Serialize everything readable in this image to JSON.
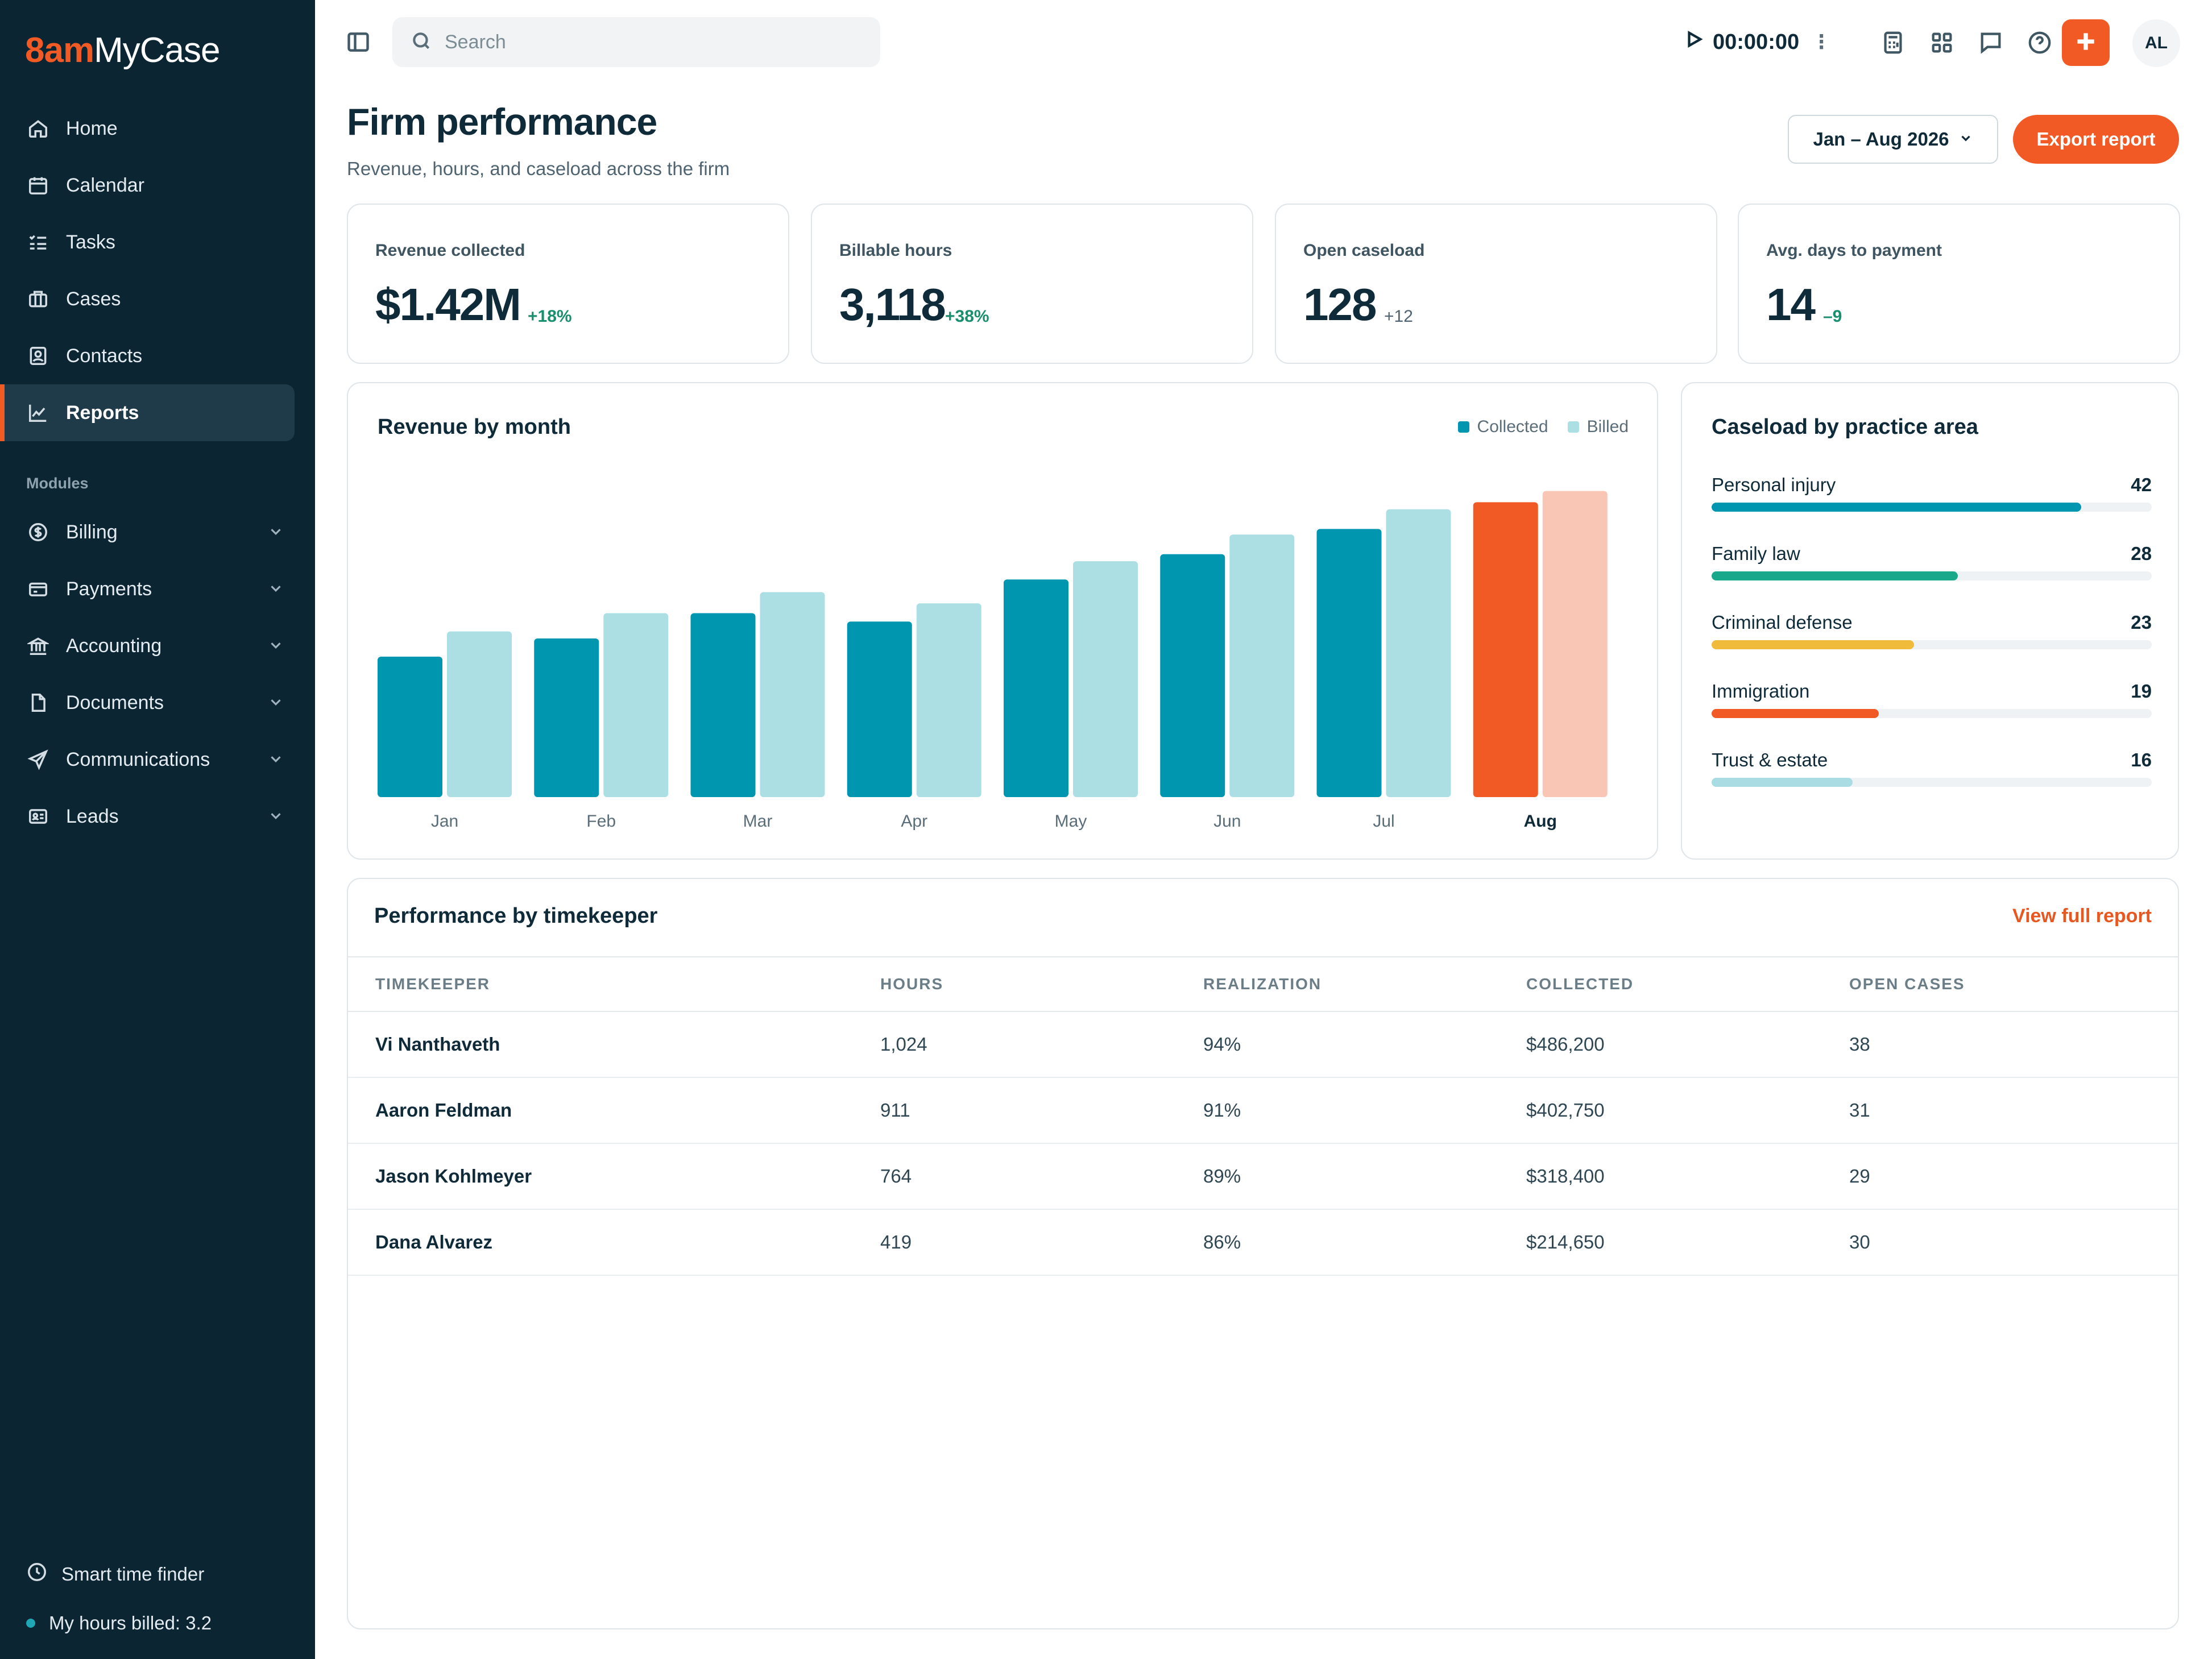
{
  "brand": {
    "logo_accent": "8am",
    "logo_rest": "MyCase",
    "accent_color": "#f15a24"
  },
  "sidebar": {
    "items": [
      {
        "label": "Home",
        "icon": "home-icon"
      },
      {
        "label": "Calendar",
        "icon": "calendar-icon"
      },
      {
        "label": "Tasks",
        "icon": "tasks-icon"
      },
      {
        "label": "Cases",
        "icon": "briefcase-icon"
      },
      {
        "label": "Contacts",
        "icon": "contact-icon"
      },
      {
        "label": "Reports",
        "icon": "chart-line-icon",
        "active": true
      }
    ],
    "modules_label": "Modules",
    "modules": [
      {
        "label": "Billing",
        "icon": "dollar-icon"
      },
      {
        "label": "Payments",
        "icon": "card-icon"
      },
      {
        "label": "Accounting",
        "icon": "bank-icon"
      },
      {
        "label": "Documents",
        "icon": "document-icon"
      },
      {
        "label": "Communications",
        "icon": "send-icon"
      },
      {
        "label": "Leads",
        "icon": "id-card-icon"
      }
    ],
    "footer": {
      "smart_time": "Smart time finder",
      "hours_billed": "My hours billed: 3.2"
    }
  },
  "topbar": {
    "search_placeholder": "Search",
    "timer": "00:00:00",
    "avatar_initials": "AL"
  },
  "header": {
    "title": "Firm performance",
    "subtitle": "Revenue, hours, and caseload across the firm",
    "date_range": "Jan – Aug 2026",
    "export_label": "Export report"
  },
  "kpis": [
    {
      "label": "Revenue collected",
      "value": "$1.42M",
      "delta": "+18%"
    },
    {
      "label": "Billable hours",
      "value": "3,118",
      "delta": "+38%"
    },
    {
      "label": "Open caseload",
      "value": "128",
      "delta": "+12"
    },
    {
      "label": "Avg. days to payment",
      "value": "14",
      "delta": "–9"
    }
  ],
  "revenue_card": {
    "title": "Revenue by month",
    "legend_collected": "Collected",
    "legend_billed": "Billed"
  },
  "chart_data": {
    "type": "bar",
    "categories": [
      "Jan",
      "Feb",
      "Mar",
      "Apr",
      "May",
      "Jun",
      "Jul",
      "Aug"
    ],
    "series": [
      {
        "name": "Collected",
        "values": [
          100,
          113,
          131,
          125,
          155,
          173,
          191,
          210
        ]
      },
      {
        "name": "Billed",
        "values": [
          118,
          131,
          146,
          138,
          168,
          187,
          205,
          218
        ]
      }
    ],
    "ylim": [
      0,
      230
    ],
    "highlight_category": "Aug",
    "colors": {
      "collected": "#0096b0",
      "billed": "#acdfe4",
      "highlight_collected": "#f15a24",
      "highlight_billed": "#f9c6b5"
    },
    "legend": "top-right",
    "grid": false
  },
  "caseload_card": {
    "title": "Caseload by practice area",
    "max": 50,
    "items": [
      {
        "label": "Personal injury",
        "count": 42,
        "color": "#0096b0"
      },
      {
        "label": "Family law",
        "count": 28,
        "color": "#1aa88a"
      },
      {
        "label": "Criminal defense",
        "count": 23,
        "color": "#f0bb3a"
      },
      {
        "label": "Immigration",
        "count": 19,
        "color": "#f15a24"
      },
      {
        "label": "Trust & estate",
        "count": 16,
        "color": "#a9dde3"
      }
    ]
  },
  "timekeepers": {
    "title": "Performance by timekeeper",
    "view_link": "View full report",
    "columns": [
      "TIMEKEEPER",
      "HOURS",
      "REALIZATION",
      "COLLECTED",
      "OPEN CASES"
    ],
    "rows": [
      {
        "name": "Vi Nanthaveth",
        "hours": "1,024",
        "realization": "94%",
        "collected": "$486,200",
        "open_cases": "38"
      },
      {
        "name": "Aaron Feldman",
        "hours": "911",
        "realization": "91%",
        "collected": "$402,750",
        "open_cases": "31"
      },
      {
        "name": "Jason Kohlmeyer",
        "hours": "764",
        "realization": "89%",
        "collected": "$318,400",
        "open_cases": "29"
      },
      {
        "name": "Dana Alvarez",
        "hours": "419",
        "realization": "86%",
        "collected": "$214,650",
        "open_cases": "30"
      }
    ]
  }
}
